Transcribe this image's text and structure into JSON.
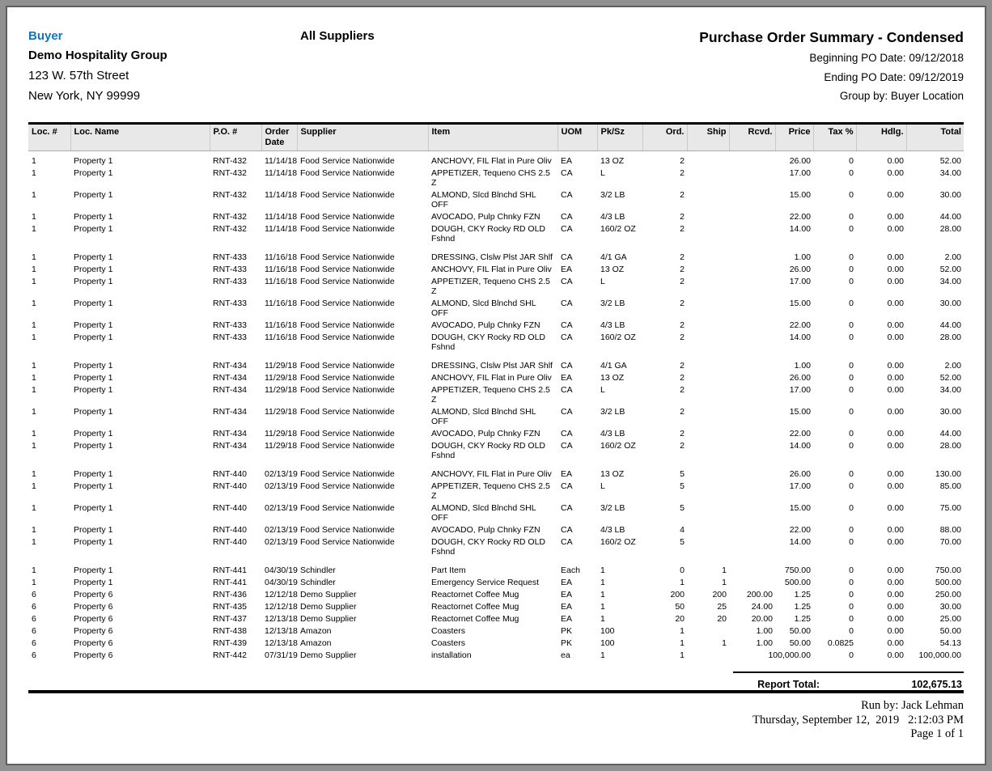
{
  "header": {
    "buyer_label": "Buyer",
    "buyer_name": "Demo Hospitality Group",
    "buyer_address1": "123 W. 57th Street",
    "buyer_address2": "New York, NY 99999",
    "suppliers_scope": "All Suppliers",
    "report_title": "Purchase Order Summary - Condensed",
    "beginning_po_date": "Beginning PO Date: 09/12/2018",
    "ending_po_date": "Ending PO Date: 09/12/2019",
    "group_by": "Group by: Buyer Location"
  },
  "table": {
    "columns": [
      "Loc. #",
      "Loc. Name",
      "P.O. #",
      "Order Date",
      "Supplier",
      "Item",
      "UOM",
      "Pk/Sz",
      "Ord.",
      "Ship",
      "Rcvd.",
      "Price",
      "Tax %",
      "Hdlg.",
      "Total"
    ],
    "rows": [
      {
        "loc": "1",
        "name": "Property 1",
        "po": "RNT-432",
        "date": "11/14/18",
        "supplier": "Food Service Nationwide",
        "item": "ANCHOVY, FIL Flat in Pure Oliv",
        "uom": "EA",
        "pksz": "13 OZ",
        "ord": "2",
        "ship": "",
        "rcvd": "",
        "price": "26.00",
        "tax": "0",
        "hdlg": "0.00",
        "total": "52.00",
        "gap": false
      },
      {
        "loc": "1",
        "name": "Property 1",
        "po": "RNT-432",
        "date": "11/14/18",
        "supplier": "Food Service Nationwide",
        "item": "APPETIZER, Tequeno CHS 2.5 Z",
        "uom": "CA",
        "pksz": "L",
        "ord": "2",
        "ship": "",
        "rcvd": "",
        "price": "17.00",
        "tax": "0",
        "hdlg": "0.00",
        "total": "34.00",
        "gap": false
      },
      {
        "loc": "1",
        "name": "Property 1",
        "po": "RNT-432",
        "date": "11/14/18",
        "supplier": "Food Service Nationwide",
        "item": "ALMOND, Slcd Blnchd SHL OFF",
        "uom": "CA",
        "pksz": "3/2 LB",
        "ord": "2",
        "ship": "",
        "rcvd": "",
        "price": "15.00",
        "tax": "0",
        "hdlg": "0.00",
        "total": "30.00",
        "gap": false
      },
      {
        "loc": "1",
        "name": "Property 1",
        "po": "RNT-432",
        "date": "11/14/18",
        "supplier": "Food Service Nationwide",
        "item": "AVOCADO, Pulp Chnky FZN",
        "uom": "CA",
        "pksz": "4/3 LB",
        "ord": "2",
        "ship": "",
        "rcvd": "",
        "price": "22.00",
        "tax": "0",
        "hdlg": "0.00",
        "total": "44.00",
        "gap": false
      },
      {
        "loc": "1",
        "name": "Property 1",
        "po": "RNT-432",
        "date": "11/14/18",
        "supplier": "Food Service Nationwide",
        "item": "DOUGH, CKY Rocky RD OLD Fshnd",
        "uom": "CA",
        "pksz": "160/2 OZ",
        "ord": "2",
        "ship": "",
        "rcvd": "",
        "price": "14.00",
        "tax": "0",
        "hdlg": "0.00",
        "total": "28.00",
        "gap": true
      },
      {
        "loc": "1",
        "name": "Property 1",
        "po": "RNT-433",
        "date": "11/16/18",
        "supplier": "Food Service Nationwide",
        "item": "DRESSING, Clslw Plst JAR Shlf",
        "uom": "CA",
        "pksz": "4/1 GA",
        "ord": "2",
        "ship": "",
        "rcvd": "",
        "price": "1.00",
        "tax": "0",
        "hdlg": "0.00",
        "total": "2.00",
        "gap": false
      },
      {
        "loc": "1",
        "name": "Property 1",
        "po": "RNT-433",
        "date": "11/16/18",
        "supplier": "Food Service Nationwide",
        "item": "ANCHOVY, FIL Flat in Pure Oliv",
        "uom": "EA",
        "pksz": "13 OZ",
        "ord": "2",
        "ship": "",
        "rcvd": "",
        "price": "26.00",
        "tax": "0",
        "hdlg": "0.00",
        "total": "52.00",
        "gap": false
      },
      {
        "loc": "1",
        "name": "Property 1",
        "po": "RNT-433",
        "date": "11/16/18",
        "supplier": "Food Service Nationwide",
        "item": "APPETIZER, Tequeno CHS 2.5 Z",
        "uom": "CA",
        "pksz": "L",
        "ord": "2",
        "ship": "",
        "rcvd": "",
        "price": "17.00",
        "tax": "0",
        "hdlg": "0.00",
        "total": "34.00",
        "gap": false
      },
      {
        "loc": "1",
        "name": "Property 1",
        "po": "RNT-433",
        "date": "11/16/18",
        "supplier": "Food Service Nationwide",
        "item": "ALMOND, Slcd Blnchd SHL OFF",
        "uom": "CA",
        "pksz": "3/2 LB",
        "ord": "2",
        "ship": "",
        "rcvd": "",
        "price": "15.00",
        "tax": "0",
        "hdlg": "0.00",
        "total": "30.00",
        "gap": false
      },
      {
        "loc": "1",
        "name": "Property 1",
        "po": "RNT-433",
        "date": "11/16/18",
        "supplier": "Food Service Nationwide",
        "item": "AVOCADO, Pulp Chnky FZN",
        "uom": "CA",
        "pksz": "4/3 LB",
        "ord": "2",
        "ship": "",
        "rcvd": "",
        "price": "22.00",
        "tax": "0",
        "hdlg": "0.00",
        "total": "44.00",
        "gap": false
      },
      {
        "loc": "1",
        "name": "Property 1",
        "po": "RNT-433",
        "date": "11/16/18",
        "supplier": "Food Service Nationwide",
        "item": "DOUGH, CKY Rocky RD OLD Fshnd",
        "uom": "CA",
        "pksz": "160/2 OZ",
        "ord": "2",
        "ship": "",
        "rcvd": "",
        "price": "14.00",
        "tax": "0",
        "hdlg": "0.00",
        "total": "28.00",
        "gap": true
      },
      {
        "loc": "1",
        "name": "Property 1",
        "po": "RNT-434",
        "date": "11/29/18",
        "supplier": "Food Service Nationwide",
        "item": "DRESSING, Clslw Plst JAR Shlf",
        "uom": "CA",
        "pksz": "4/1 GA",
        "ord": "2",
        "ship": "",
        "rcvd": "",
        "price": "1.00",
        "tax": "0",
        "hdlg": "0.00",
        "total": "2.00",
        "gap": false
      },
      {
        "loc": "1",
        "name": "Property 1",
        "po": "RNT-434",
        "date": "11/29/18",
        "supplier": "Food Service Nationwide",
        "item": "ANCHOVY, FIL Flat in Pure Oliv",
        "uom": "EA",
        "pksz": "13 OZ",
        "ord": "2",
        "ship": "",
        "rcvd": "",
        "price": "26.00",
        "tax": "0",
        "hdlg": "0.00",
        "total": "52.00",
        "gap": false
      },
      {
        "loc": "1",
        "name": "Property 1",
        "po": "RNT-434",
        "date": "11/29/18",
        "supplier": "Food Service Nationwide",
        "item": "APPETIZER, Tequeno CHS 2.5 Z",
        "uom": "CA",
        "pksz": "L",
        "ord": "2",
        "ship": "",
        "rcvd": "",
        "price": "17.00",
        "tax": "0",
        "hdlg": "0.00",
        "total": "34.00",
        "gap": false
      },
      {
        "loc": "1",
        "name": "Property 1",
        "po": "RNT-434",
        "date": "11/29/18",
        "supplier": "Food Service Nationwide",
        "item": "ALMOND, Slcd Blnchd SHL OFF",
        "uom": "CA",
        "pksz": "3/2 LB",
        "ord": "2",
        "ship": "",
        "rcvd": "",
        "price": "15.00",
        "tax": "0",
        "hdlg": "0.00",
        "total": "30.00",
        "gap": false
      },
      {
        "loc": "1",
        "name": "Property 1",
        "po": "RNT-434",
        "date": "11/29/18",
        "supplier": "Food Service Nationwide",
        "item": "AVOCADO, Pulp Chnky FZN",
        "uom": "CA",
        "pksz": "4/3 LB",
        "ord": "2",
        "ship": "",
        "rcvd": "",
        "price": "22.00",
        "tax": "0",
        "hdlg": "0.00",
        "total": "44.00",
        "gap": false
      },
      {
        "loc": "1",
        "name": "Property 1",
        "po": "RNT-434",
        "date": "11/29/18",
        "supplier": "Food Service Nationwide",
        "item": "DOUGH, CKY Rocky RD OLD Fshnd",
        "uom": "CA",
        "pksz": "160/2 OZ",
        "ord": "2",
        "ship": "",
        "rcvd": "",
        "price": "14.00",
        "tax": "0",
        "hdlg": "0.00",
        "total": "28.00",
        "gap": true
      },
      {
        "loc": "1",
        "name": "Property 1",
        "po": "RNT-440",
        "date": "02/13/19",
        "supplier": "Food Service Nationwide",
        "item": "ANCHOVY, FIL Flat in Pure Oliv",
        "uom": "EA",
        "pksz": "13 OZ",
        "ord": "5",
        "ship": "",
        "rcvd": "",
        "price": "26.00",
        "tax": "0",
        "hdlg": "0.00",
        "total": "130.00",
        "gap": false
      },
      {
        "loc": "1",
        "name": "Property 1",
        "po": "RNT-440",
        "date": "02/13/19",
        "supplier": "Food Service Nationwide",
        "item": "APPETIZER, Tequeno CHS 2.5 Z",
        "uom": "CA",
        "pksz": "L",
        "ord": "5",
        "ship": "",
        "rcvd": "",
        "price": "17.00",
        "tax": "0",
        "hdlg": "0.00",
        "total": "85.00",
        "gap": false
      },
      {
        "loc": "1",
        "name": "Property 1",
        "po": "RNT-440",
        "date": "02/13/19",
        "supplier": "Food Service Nationwide",
        "item": "ALMOND, Slcd Blnchd SHL OFF",
        "uom": "CA",
        "pksz": "3/2 LB",
        "ord": "5",
        "ship": "",
        "rcvd": "",
        "price": "15.00",
        "tax": "0",
        "hdlg": "0.00",
        "total": "75.00",
        "gap": false
      },
      {
        "loc": "1",
        "name": "Property 1",
        "po": "RNT-440",
        "date": "02/13/19",
        "supplier": "Food Service Nationwide",
        "item": "AVOCADO, Pulp Chnky FZN",
        "uom": "CA",
        "pksz": "4/3 LB",
        "ord": "4",
        "ship": "",
        "rcvd": "",
        "price": "22.00",
        "tax": "0",
        "hdlg": "0.00",
        "total": "88.00",
        "gap": false
      },
      {
        "loc": "1",
        "name": "Property 1",
        "po": "RNT-440",
        "date": "02/13/19",
        "supplier": "Food Service Nationwide",
        "item": "DOUGH, CKY Rocky RD OLD Fshnd",
        "uom": "CA",
        "pksz": "160/2 OZ",
        "ord": "5",
        "ship": "",
        "rcvd": "",
        "price": "14.00",
        "tax": "0",
        "hdlg": "0.00",
        "total": "70.00",
        "gap": true
      },
      {
        "loc": "1",
        "name": "Property 1",
        "po": "RNT-441",
        "date": "04/30/19",
        "supplier": "Schindler",
        "item": "Part Item",
        "uom": "Each",
        "pksz": "1",
        "ord": "0",
        "ship": "1",
        "rcvd": "",
        "price": "750.00",
        "tax": "0",
        "hdlg": "0.00",
        "total": "750.00",
        "gap": false
      },
      {
        "loc": "1",
        "name": "Property 1",
        "po": "RNT-441",
        "date": "04/30/19",
        "supplier": "Schindler",
        "item": "Emergency Service Request",
        "uom": "EA",
        "pksz": "1",
        "ord": "1",
        "ship": "1",
        "rcvd": "",
        "price": "500.00",
        "tax": "0",
        "hdlg": "0.00",
        "total": "500.00",
        "gap": false
      },
      {
        "loc": "6",
        "name": "Property 6",
        "po": "RNT-436",
        "date": "12/12/18",
        "supplier": "Demo Supplier",
        "item": "Reactornet Coffee Mug",
        "uom": "EA",
        "pksz": "1",
        "ord": "200",
        "ship": "200",
        "rcvd": "200.00",
        "price": "1.25",
        "tax": "0",
        "hdlg": "0.00",
        "total": "250.00",
        "gap": false
      },
      {
        "loc": "6",
        "name": "Property 6",
        "po": "RNT-435",
        "date": "12/12/18",
        "supplier": "Demo Supplier",
        "item": "Reactornet Coffee Mug",
        "uom": "EA",
        "pksz": "1",
        "ord": "50",
        "ship": "25",
        "rcvd": "24.00",
        "price": "1.25",
        "tax": "0",
        "hdlg": "0.00",
        "total": "30.00",
        "gap": false
      },
      {
        "loc": "6",
        "name": "Property 6",
        "po": "RNT-437",
        "date": "12/13/18",
        "supplier": "Demo Supplier",
        "item": "Reactornet Coffee Mug",
        "uom": "EA",
        "pksz": "1",
        "ord": "20",
        "ship": "20",
        "rcvd": "20.00",
        "price": "1.25",
        "tax": "0",
        "hdlg": "0.00",
        "total": "25.00",
        "gap": false
      },
      {
        "loc": "6",
        "name": "Property 6",
        "po": "RNT-438",
        "date": "12/13/18",
        "supplier": "Amazon",
        "item": "Coasters",
        "uom": "PK",
        "pksz": "100",
        "ord": "1",
        "ship": "",
        "rcvd": "1.00",
        "price": "50.00",
        "tax": "0",
        "hdlg": "0.00",
        "total": "50.00",
        "gap": false
      },
      {
        "loc": "6",
        "name": "Property 6",
        "po": "RNT-439",
        "date": "12/13/18",
        "supplier": "Amazon",
        "item": "Coasters",
        "uom": "PK",
        "pksz": "100",
        "ord": "1",
        "ship": "1",
        "rcvd": "1.00",
        "price": "50.00",
        "tax": "0.0825",
        "hdlg": "0.00",
        "total": "54.13",
        "gap": false
      },
      {
        "loc": "6",
        "name": "Property 6",
        "po": "RNT-442",
        "date": "07/31/19",
        "supplier": "Demo Supplier",
        "item": "installation",
        "uom": "ea",
        "pksz": "1",
        "ord": "1",
        "ship": "",
        "rcvd": "",
        "price": "100,000.00",
        "tax": "0",
        "hdlg": "0.00",
        "total": "100,000.00",
        "gap": false
      }
    ]
  },
  "summary": {
    "report_total_label": "Report Total:",
    "report_total_value": "102,675.13"
  },
  "footer": {
    "run_by": "Run by: Jack Lehman",
    "run_datetime": "Thursday, September 12,  2019   2:12:03 PM",
    "page_number": "Page 1 of 1"
  }
}
